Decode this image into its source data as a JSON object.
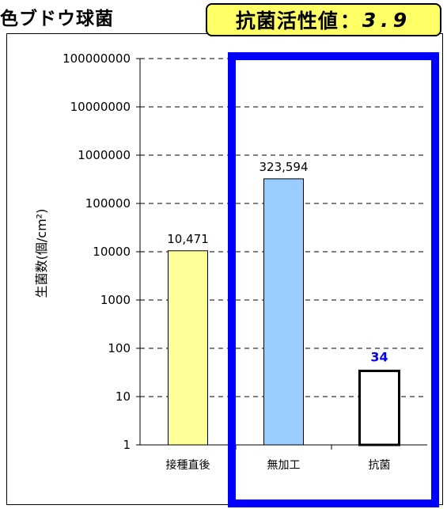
{
  "header": {
    "title": "色ブドウ球菌",
    "badge_label": "抗菌活性値",
    "badge_separator": "：",
    "badge_value": "3.9"
  },
  "chart_data": {
    "type": "bar",
    "yscale": "log",
    "ylim": [
      1,
      100000000
    ],
    "ylabel": "生菌数(個/cm²)",
    "yticks": [
      "1",
      "10",
      "100",
      "1000",
      "10000",
      "100000",
      "1000000",
      "10000000",
      "100000000"
    ],
    "categories": [
      "接種直後",
      "無加工",
      "抗菌"
    ],
    "values": [
      10471,
      323594,
      34
    ],
    "data_labels": [
      "10,471",
      "323,594",
      "34"
    ],
    "grid": true,
    "colors": {
      "bar_1": "#ffff99",
      "bar_2": "#99ccff",
      "bar_3": "#ffffff",
      "highlight_border": "#0000ff",
      "highlight_label": "#0000ee",
      "badge_background": "#ffff66"
    }
  }
}
